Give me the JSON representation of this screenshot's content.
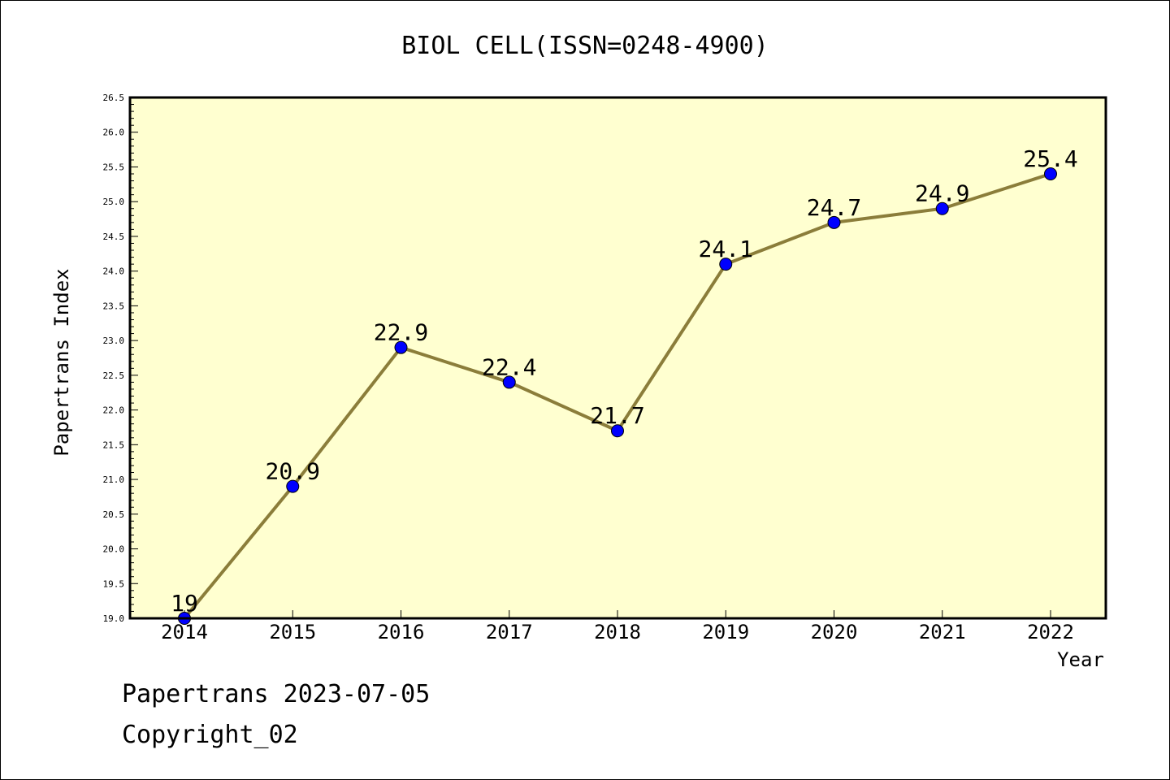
{
  "chart_data": {
    "type": "line",
    "title": "BIOL CELL(ISSN=0248-4900)",
    "xlabel": "Year",
    "ylabel": "Papertrans Index",
    "categories": [
      "2014",
      "2015",
      "2016",
      "2017",
      "2018",
      "2019",
      "2020",
      "2021",
      "2022"
    ],
    "series": [
      {
        "values": [
          19,
          20.9,
          22.9,
          22.4,
          21.7,
          24.1,
          24.7,
          24.9,
          25.4
        ],
        "labels": [
          "19",
          "20.9",
          "22.9",
          "22.4",
          "21.7",
          "24.1",
          "24.7",
          "24.9",
          "25.4"
        ],
        "line_color": "#8b7d3a",
        "marker_color": "#0000ff"
      }
    ],
    "ylim": [
      19.0,
      26.5
    ],
    "yticks": [
      "19.0",
      "19.5",
      "20.0",
      "20.5",
      "21.0",
      "21.5",
      "22.0",
      "22.5",
      "23.0",
      "23.5",
      "24.0",
      "24.5",
      "25.0",
      "25.5",
      "26.0",
      "26.5"
    ],
    "grid": false,
    "plot_background": "#ffffd0"
  },
  "footer": {
    "line1": "Papertrans 2023-07-05",
    "line2": "Copyright_02"
  }
}
